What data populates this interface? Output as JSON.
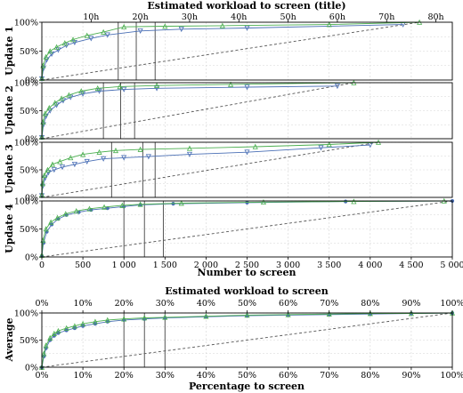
{
  "chart_data": [
    {
      "type": "line",
      "top_axis_title": "Estimated workload to screen (title)",
      "top_axis_ticks": [
        "10h",
        "20h",
        "30h",
        "40h",
        "50h",
        "60h",
        "70h",
        "80h"
      ],
      "top_axis_hours": [
        10,
        20,
        30,
        40,
        50,
        60,
        70,
        80
      ],
      "xlabel": "Number to screen",
      "xlim": [
        0,
        5000
      ],
      "x_ticks": [
        0,
        500,
        1000,
        1500,
        2000,
        2500,
        3000,
        3500,
        4000,
        4500,
        5000
      ],
      "x_tick_labels": [
        "0",
        "500",
        "1 000",
        "1 500",
        "2 000",
        "2 500",
        "3 000",
        "3 500",
        "4 000",
        "4 500",
        "5 000"
      ],
      "ylim": [
        0,
        1
      ],
      "y_tick_labels": [
        "0%",
        "50%",
        "100%"
      ],
      "grid": true,
      "colors": {
        "series_a": "#4a6fb5",
        "series_b": "#4caf50",
        "reference": "#555555",
        "thresholds": "#555555"
      },
      "panels": [
        {
          "ylabel": "Update 1",
          "n_total": 4600,
          "thresholds": [
            930,
            1150,
            1380
          ],
          "series": [
            {
              "marker": "triangle-down",
              "x": [
                0,
                20,
                60,
                120,
                200,
                300,
                400,
                600,
                800,
                1200,
                1700,
                2500,
                4400
              ],
              "y": [
                0.02,
                0.2,
                0.35,
                0.45,
                0.52,
                0.6,
                0.65,
                0.72,
                0.78,
                0.85,
                0.88,
                0.9,
                0.96
              ]
            },
            {
              "marker": "triangle-up",
              "x": [
                0,
                15,
                50,
                100,
                180,
                280,
                380,
                550,
                750,
                1000,
                1500,
                2200,
                3500,
                4600
              ],
              "y": [
                0.03,
                0.25,
                0.4,
                0.5,
                0.57,
                0.64,
                0.7,
                0.77,
                0.83,
                0.92,
                0.93,
                0.94,
                0.96,
                1.0
              ]
            }
          ]
        },
        {
          "ylabel": "Update 2",
          "n_total": 3800,
          "thresholds": [
            750,
            960,
            1130
          ],
          "series": [
            {
              "marker": "triangle-down",
              "x": [
                0,
                20,
                50,
                100,
                180,
                260,
                350,
                500,
                700,
                1000,
                1400,
                2500,
                3600
              ],
              "y": [
                0.02,
                0.25,
                0.4,
                0.5,
                0.6,
                0.68,
                0.74,
                0.8,
                0.85,
                0.88,
                0.9,
                0.92,
                0.94
              ]
            },
            {
              "marker": "triangle-up",
              "x": [
                0,
                15,
                40,
                90,
                160,
                240,
                330,
                480,
                680,
                950,
                1400,
                2300,
                3800
              ],
              "y": [
                0.03,
                0.3,
                0.45,
                0.55,
                0.64,
                0.72,
                0.78,
                0.85,
                0.9,
                0.93,
                0.95,
                0.97,
                1.0
              ]
            }
          ]
        },
        {
          "ylabel": "Update 3",
          "n_total": 4100,
          "thresholds": [
            850,
            1230,
            1380
          ],
          "series": [
            {
              "marker": "triangle-down",
              "x": [
                0,
                10,
                40,
                80,
                150,
                250,
                400,
                550,
                750,
                1000,
                1300,
                1800,
                2500,
                3400,
                4000
              ],
              "y": [
                0.03,
                0.2,
                0.35,
                0.45,
                0.5,
                0.55,
                0.6,
                0.65,
                0.7,
                0.72,
                0.74,
                0.78,
                0.82,
                0.9,
                0.95
              ]
            },
            {
              "marker": "triangle-up",
              "x": [
                0,
                10,
                30,
                70,
                130,
                220,
                350,
                500,
                700,
                900,
                1200,
                1800,
                2600,
                3500,
                4100
              ],
              "y": [
                0.05,
                0.25,
                0.4,
                0.5,
                0.6,
                0.65,
                0.72,
                0.78,
                0.82,
                0.85,
                0.87,
                0.89,
                0.92,
                0.96,
                1.0
              ]
            }
          ]
        },
        {
          "ylabel": "Update 4",
          "n_total": 5000,
          "thresholds": [
            1000,
            1250,
            1480
          ],
          "series": [
            {
              "marker": "circle",
              "x": [
                0,
                20,
                60,
                120,
                200,
                300,
                450,
                600,
                800,
                1000,
                1200,
                1600,
                2500,
                3700,
                5000
              ],
              "y": [
                0.02,
                0.25,
                0.45,
                0.58,
                0.68,
                0.75,
                0.8,
                0.84,
                0.87,
                0.9,
                0.93,
                0.95,
                0.97,
                0.99,
                1.0
              ]
            },
            {
              "marker": "triangle-up",
              "x": [
                0,
                15,
                50,
                110,
                190,
                290,
                420,
                580,
                760,
                980,
                1200,
                1700,
                2700,
                3800,
                4900
              ],
              "y": [
                0.03,
                0.3,
                0.5,
                0.62,
                0.7,
                0.77,
                0.82,
                0.86,
                0.89,
                0.92,
                0.94,
                0.96,
                0.98,
                0.99,
                1.0
              ]
            }
          ]
        }
      ]
    },
    {
      "type": "line",
      "ylabel": "Average",
      "top_axis_title": "Estimated workload to screen",
      "xlabel": "Percentage to screen",
      "xlim": [
        0,
        100
      ],
      "ylim": [
        0,
        1
      ],
      "x_ticks": [
        0,
        10,
        20,
        30,
        40,
        50,
        60,
        70,
        80,
        90,
        100
      ],
      "x_tick_labels": [
        "0%",
        "10%",
        "20%",
        "30%",
        "40%",
        "50%",
        "60%",
        "70%",
        "80%",
        "90%",
        "100%"
      ],
      "top_axis_ticks": [
        0,
        10,
        20,
        30,
        40,
        50,
        60,
        70,
        80,
        90,
        100
      ],
      "top_axis_labels": [
        "0%",
        "10%",
        "20%",
        "30%",
        "40%",
        "50%",
        "60%",
        "70%",
        "80%",
        "90%",
        "100%"
      ],
      "y_tick_labels": [
        "0%",
        "50%",
        "100%"
      ],
      "grid": true,
      "thresholds": [
        20,
        25,
        30
      ],
      "series": [
        {
          "marker": "circle",
          "x": [
            0,
            0.5,
            1,
            2,
            3,
            4,
            6,
            8,
            10,
            13,
            16,
            20,
            25,
            30,
            40,
            50,
            60,
            70,
            80,
            90,
            100
          ],
          "y": [
            0.0,
            0.2,
            0.35,
            0.5,
            0.58,
            0.63,
            0.68,
            0.72,
            0.76,
            0.8,
            0.84,
            0.87,
            0.89,
            0.91,
            0.93,
            0.95,
            0.96,
            0.97,
            0.98,
            0.99,
            1.0
          ]
        },
        {
          "marker": "triangle-up",
          "x": [
            0,
            0.5,
            1,
            2,
            3,
            4,
            6,
            8,
            10,
            13,
            16,
            20,
            25,
            30,
            40,
            50,
            60,
            70,
            80,
            90,
            100
          ],
          "y": [
            0.0,
            0.25,
            0.4,
            0.54,
            0.62,
            0.67,
            0.72,
            0.76,
            0.8,
            0.84,
            0.87,
            0.89,
            0.91,
            0.92,
            0.94,
            0.96,
            0.97,
            0.98,
            0.99,
            0.99,
            1.0
          ]
        }
      ]
    }
  ]
}
